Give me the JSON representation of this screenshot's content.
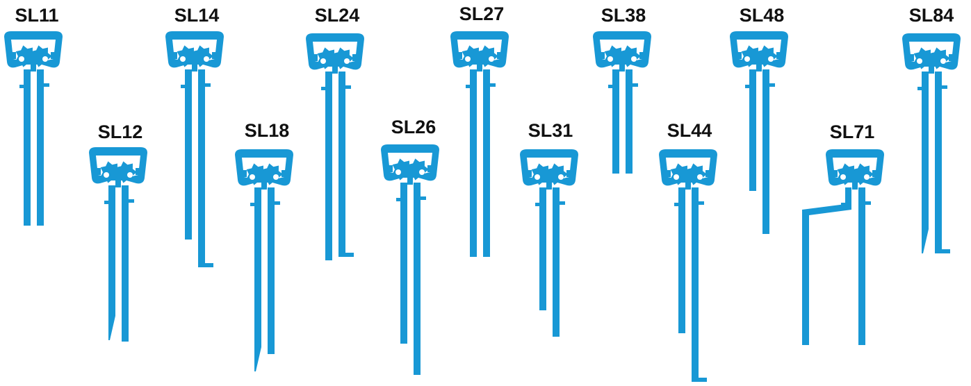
{
  "items": [
    {
      "label": "SL11"
    },
    {
      "label": "SL12"
    },
    {
      "label": "SL14"
    },
    {
      "label": "SL18"
    },
    {
      "label": "SL24"
    },
    {
      "label": "SL26"
    },
    {
      "label": "SL27"
    },
    {
      "label": "SL31"
    },
    {
      "label": "SL38"
    },
    {
      "label": "SL44"
    },
    {
      "label": "SL48"
    },
    {
      "label": "SL71"
    },
    {
      "label": "SL84"
    }
  ]
}
